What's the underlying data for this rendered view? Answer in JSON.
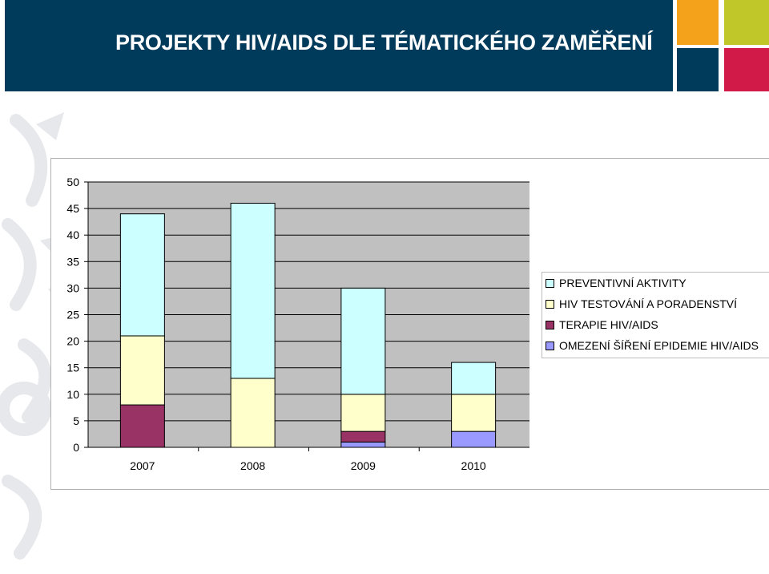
{
  "header": {
    "title": "PROJEKTY HIV/AIDS DLE TÉMATICKÉHO ZAMĚŘENÍ"
  },
  "colors": {
    "header_bg": "#003b5c",
    "square_orange": "#f4a21c",
    "square_green": "#c0c829",
    "square_navy": "#003b5c",
    "square_red": "#d11a47",
    "plot_bg": "#c0c0c0"
  },
  "chart_data": {
    "type": "bar",
    "stacked": true,
    "categories": [
      "2007",
      "2008",
      "2009",
      "2010"
    ],
    "series": [
      {
        "name": "OMEZENÍ  ŠÍŘENÍ EPIDEMIE HIV/AIDS",
        "color": "#9999ff",
        "values": [
          0,
          0,
          1,
          3
        ]
      },
      {
        "name": "TERAPIE HIV/AIDS",
        "color": "#993366",
        "values": [
          8,
          0,
          2,
          0
        ]
      },
      {
        "name": "HIV TESTOVÁNÍ A PORADENSTVÍ",
        "color": "#ffffcc",
        "values": [
          13,
          13,
          7,
          7
        ]
      },
      {
        "name": "PREVENTIVNÍ AKTIVITY",
        "color": "#ccffff",
        "values": [
          23,
          33,
          20,
          6
        ]
      }
    ],
    "legend_order": [
      "PREVENTIVNÍ AKTIVITY",
      "HIV TESTOVÁNÍ A PORADENSTVÍ",
      "TERAPIE HIV/AIDS",
      "OMEZENÍ  ŠÍŘENÍ EPIDEMIE HIV/AIDS"
    ],
    "y_ticks": [
      "0",
      "5",
      "10",
      "15",
      "20",
      "25",
      "30",
      "35",
      "40",
      "45",
      "50"
    ],
    "ylim": [
      0,
      50
    ],
    "grid": true,
    "legend_position": "right",
    "title": "",
    "xlabel": "",
    "ylabel": ""
  }
}
